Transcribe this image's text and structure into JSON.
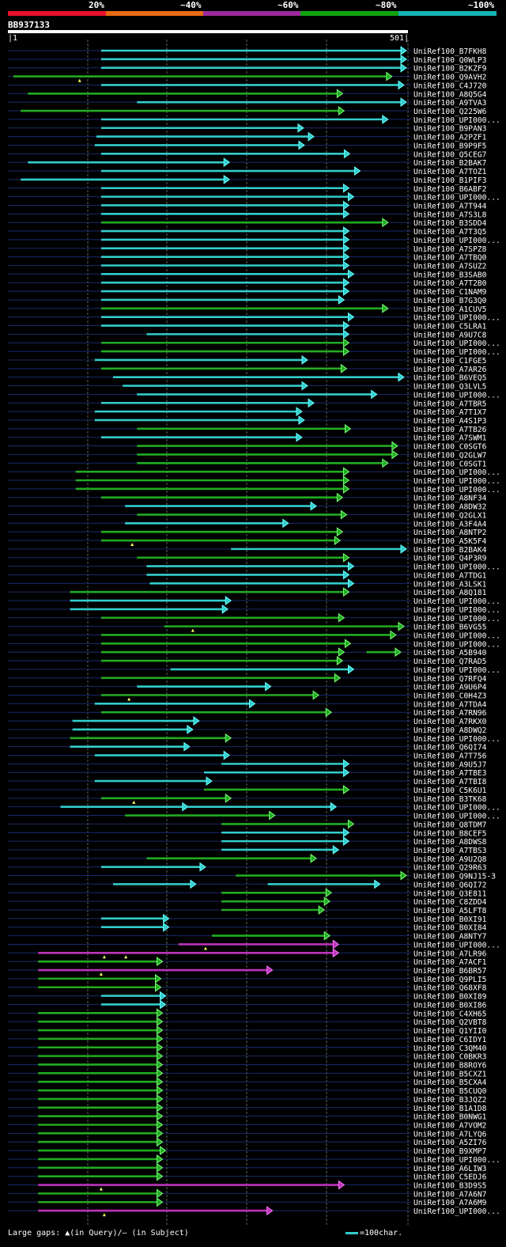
{
  "legend": {
    "labels": [
      "20%",
      "~40%",
      "~60%",
      "~80%",
      "~100%"
    ],
    "colors": [
      "#e8112d",
      "#e86b12",
      "#9b2a9b",
      "#11a311",
      "#13b3b3"
    ]
  },
  "query": {
    "id": "BB937133",
    "start_label": "1",
    "end_label": "501",
    "length": 501
  },
  "footer": {
    "gaps_text": "Large gaps: ▲(in Query)/– (in Subject)",
    "scale_text": "=100char."
  },
  "chart_data": {
    "type": "alignment-overview",
    "query_length": 501,
    "hits": [
      {
        "name": "UniRef100_B7FKH8",
        "start": 116,
        "end": 501,
        "color": "cyan"
      },
      {
        "name": "UniRef100_Q0WLP3",
        "start": 116,
        "end": 501,
        "color": "cyan"
      },
      {
        "name": "UniRef100_B2KZF9",
        "start": 116,
        "end": 501,
        "color": "cyan"
      },
      {
        "name": "UniRef100_Q9AVH2",
        "start": 6,
        "end": 481,
        "color": "green",
        "marks": [
          89
        ]
      },
      {
        "name": "UniRef100_C4J720",
        "start": 116,
        "end": 496,
        "color": "cyan"
      },
      {
        "name": "UniRef100_A8Q5G4",
        "start": 24,
        "end": 419,
        "color": "green"
      },
      {
        "name": "UniRef100_A9TVA3",
        "start": 161,
        "end": 501,
        "color": "cyan"
      },
      {
        "name": "UniRef100_Q225W6",
        "start": 15,
        "end": 421,
        "color": "green"
      },
      {
        "name": "UniRef100_UPI000...",
        "start": 116,
        "end": 476,
        "color": "cyan"
      },
      {
        "name": "UniRef100_B9PAN3",
        "start": 116,
        "end": 370,
        "color": "cyan"
      },
      {
        "name": "UniRef100_A2PZF1",
        "start": 110,
        "end": 383,
        "color": "cyan"
      },
      {
        "name": "UniRef100_B9P9F5",
        "start": 108,
        "end": 371,
        "color": "cyan"
      },
      {
        "name": "UniRef100_Q5CEG7",
        "start": 116,
        "end": 428,
        "color": "cyan"
      },
      {
        "name": "UniRef100_B2BAK7",
        "start": 24,
        "end": 277,
        "color": "cyan"
      },
      {
        "name": "UniRef100_A7TOZ1",
        "start": 116,
        "end": 441,
        "color": "cyan"
      },
      {
        "name": "UniRef100_B1PIF3",
        "start": 15,
        "end": 277,
        "color": "cyan"
      },
      {
        "name": "UniRef100_B6ABF2",
        "start": 116,
        "end": 427,
        "color": "cyan"
      },
      {
        "name": "UniRef100_UPI000...",
        "start": 116,
        "end": 433,
        "color": "cyan"
      },
      {
        "name": "UniRef100_A7T944",
        "start": 116,
        "end": 427,
        "color": "cyan"
      },
      {
        "name": "UniRef100_A7S3L8",
        "start": 116,
        "end": 427,
        "color": "cyan"
      },
      {
        "name": "UniRef100_B3SDD4",
        "start": 116,
        "end": 476,
        "color": "green"
      },
      {
        "name": "UniRef100_A7T3Q5",
        "start": 116,
        "end": 427,
        "color": "cyan"
      },
      {
        "name": "UniRef100_UPI000...",
        "start": 116,
        "end": 427,
        "color": "cyan"
      },
      {
        "name": "UniRef100_A7SPZ8",
        "start": 116,
        "end": 427,
        "color": "cyan"
      },
      {
        "name": "UniRef100_A7TBQ0",
        "start": 116,
        "end": 427,
        "color": "cyan"
      },
      {
        "name": "UniRef100_A7SUZ2",
        "start": 116,
        "end": 427,
        "color": "cyan"
      },
      {
        "name": "UniRef100_B3SAB0",
        "start": 116,
        "end": 433,
        "color": "cyan"
      },
      {
        "name": "UniRef100_A7T2B0",
        "start": 116,
        "end": 427,
        "color": "cyan"
      },
      {
        "name": "UniRef100_C1NAM9",
        "start": 116,
        "end": 427,
        "color": "cyan"
      },
      {
        "name": "UniRef100_B7G3Q0",
        "start": 116,
        "end": 421,
        "color": "cyan"
      },
      {
        "name": "UniRef100_A1CUV5",
        "start": 116,
        "end": 476,
        "color": "green"
      },
      {
        "name": "UniRef100_UPI000...",
        "start": 116,
        "end": 433,
        "color": "cyan"
      },
      {
        "name": "UniRef100_C5LRA1",
        "start": 116,
        "end": 427,
        "color": "cyan"
      },
      {
        "name": "UniRef100_A9U7C8",
        "start": 173,
        "end": 427,
        "color": "cyan"
      },
      {
        "name": "UniRef100_UPI000...",
        "start": 116,
        "end": 427,
        "color": "green"
      },
      {
        "name": "UniRef100_UPI000...",
        "start": 116,
        "end": 427,
        "color": "green"
      },
      {
        "name": "UniRef100_C1FGE5",
        "start": 108,
        "end": 375,
        "color": "cyan"
      },
      {
        "name": "UniRef100_A7AR26",
        "start": 116,
        "end": 424,
        "color": "green"
      },
      {
        "name": "UniRef100_B6VEQ5",
        "start": 131,
        "end": 496,
        "color": "cyan"
      },
      {
        "name": "UniRef100_Q3LVL5",
        "start": 143,
        "end": 375,
        "color": "cyan"
      },
      {
        "name": "UniRef100_UPI000...",
        "start": 161,
        "end": 462,
        "color": "cyan"
      },
      {
        "name": "UniRef100_A7TBR5",
        "start": 116,
        "end": 383,
        "color": "cyan"
      },
      {
        "name": "UniRef100_A7T1X7",
        "start": 108,
        "end": 368,
        "color": "cyan"
      },
      {
        "name": "UniRef100_A4S1P3",
        "start": 108,
        "end": 371,
        "color": "cyan"
      },
      {
        "name": "UniRef100_A7TB26",
        "start": 161,
        "end": 429,
        "color": "green"
      },
      {
        "name": "UniRef100_A7SWM1",
        "start": 116,
        "end": 368,
        "color": "cyan"
      },
      {
        "name": "UniRef100_C0SGT6",
        "start": 161,
        "end": 488,
        "color": "green"
      },
      {
        "name": "UniRef100_Q2GLW7",
        "start": 161,
        "end": 488,
        "color": "green"
      },
      {
        "name": "UniRef100_C0SGT1",
        "start": 161,
        "end": 476,
        "color": "green"
      },
      {
        "name": "UniRef100_UPI000...",
        "start": 84,
        "end": 427,
        "color": "green"
      },
      {
        "name": "UniRef100_UPI000...",
        "start": 84,
        "end": 427,
        "color": "green"
      },
      {
        "name": "UniRef100_UPI000...",
        "start": 84,
        "end": 427,
        "color": "green"
      },
      {
        "name": "UniRef100_A8NF34",
        "start": 116,
        "end": 419,
        "color": "green"
      },
      {
        "name": "UniRef100_A8DW32",
        "start": 146,
        "end": 386,
        "color": "cyan"
      },
      {
        "name": "UniRef100_Q2GLX1",
        "start": 161,
        "end": 424,
        "color": "green"
      },
      {
        "name": "UniRef100_A3F4A4",
        "start": 146,
        "end": 351,
        "color": "cyan"
      },
      {
        "name": "UniRef100_A8NTP2",
        "start": 116,
        "end": 419,
        "color": "green"
      },
      {
        "name": "UniRef100_A5K5F4",
        "start": 116,
        "end": 416,
        "color": "green",
        "marks": [
          155
        ]
      },
      {
        "name": "UniRef100_B2BAK4",
        "start": 279,
        "end": 501,
        "color": "cyan"
      },
      {
        "name": "UniRef100_Q4P3R9",
        "start": 161,
        "end": 427,
        "color": "green"
      },
      {
        "name": "UniRef100_UPI000...",
        "start": 173,
        "end": 433,
        "color": "cyan"
      },
      {
        "name": "UniRef100_A7TDG1",
        "start": 173,
        "end": 427,
        "color": "cyan"
      },
      {
        "name": "UniRef100_A3LSK1",
        "start": 177,
        "end": 433,
        "color": "cyan"
      },
      {
        "name": "UniRef100_A8Q181",
        "start": 77,
        "end": 427,
        "color": "green"
      },
      {
        "name": "UniRef100_UPI000...",
        "start": 77,
        "end": 279,
        "color": "cyan"
      },
      {
        "name": "UniRef100_UPI000...",
        "start": 77,
        "end": 275,
        "color": "cyan"
      },
      {
        "name": "UniRef100_UPI000...",
        "start": 116,
        "end": 421,
        "color": "green"
      },
      {
        "name": "UniRef100_B6VG55",
        "start": 195,
        "end": 496,
        "color": "green",
        "marks": [
          231
        ]
      },
      {
        "name": "UniRef100_UPI000...",
        "start": 116,
        "end": 486,
        "color": "green"
      },
      {
        "name": "UniRef100_UPI000...",
        "start": 116,
        "end": 429,
        "color": "green"
      },
      {
        "name": "UniRef100_A5B940",
        "start": 116,
        "end": 421,
        "color": "green",
        "extra": [
          [
            449,
            492
          ]
        ]
      },
      {
        "name": "UniRef100_Q7RAD5",
        "start": 116,
        "end": 419,
        "color": "green"
      },
      {
        "name": "UniRef100_UPI000...",
        "start": 203,
        "end": 433,
        "color": "cyan"
      },
      {
        "name": "UniRef100_Q7RFQ4",
        "start": 116,
        "end": 416,
        "color": "green"
      },
      {
        "name": "UniRef100_A9U6P4",
        "start": 161,
        "end": 329,
        "color": "cyan"
      },
      {
        "name": "UniRef100_C0H4Z3",
        "start": 116,
        "end": 389,
        "color": "green",
        "marks": [
          151
        ]
      },
      {
        "name": "UniRef100_A7TDA4",
        "start": 108,
        "end": 309,
        "color": "cyan"
      },
      {
        "name": "UniRef100_A7RN96",
        "start": 116,
        "end": 405,
        "color": "green"
      },
      {
        "name": "UniRef100_A7RKX0",
        "start": 80,
        "end": 239,
        "color": "cyan"
      },
      {
        "name": "UniRef100_A8DWQ2",
        "start": 80,
        "end": 231,
        "color": "cyan"
      },
      {
        "name": "UniRef100_UPI000...",
        "start": 77,
        "end": 279,
        "color": "green"
      },
      {
        "name": "UniRef100_Q6QI74",
        "start": 77,
        "end": 227,
        "color": "cyan"
      },
      {
        "name": "UniRef100_A7T756",
        "start": 108,
        "end": 277,
        "color": "cyan"
      },
      {
        "name": "UniRef100_A9U5J7",
        "start": 267,
        "end": 427,
        "color": "cyan"
      },
      {
        "name": "UniRef100_A7TBE3",
        "start": 245,
        "end": 427,
        "color": "cyan"
      },
      {
        "name": "UniRef100_A7TBI8",
        "start": 108,
        "end": 255,
        "color": "cyan"
      },
      {
        "name": "UniRef100_C5K6U1",
        "start": 245,
        "end": 427,
        "color": "green"
      },
      {
        "name": "UniRef100_B3TK68",
        "start": 116,
        "end": 279,
        "color": "green",
        "marks": [
          157
        ]
      },
      {
        "name": "UniRef100_UPI000...",
        "start": 65,
        "end": 225,
        "color": "cyan",
        "extra": [
          [
            225,
            411
          ]
        ]
      },
      {
        "name": "UniRef100_UPI000...",
        "start": 146,
        "end": 334,
        "color": "green"
      },
      {
        "name": "UniRef100_Q8TDM7",
        "start": 267,
        "end": 433,
        "color": "green"
      },
      {
        "name": "UniRef100_B8CEF5",
        "start": 267,
        "end": 427,
        "color": "cyan"
      },
      {
        "name": "UniRef100_A8DWS8",
        "start": 267,
        "end": 427,
        "color": "cyan"
      },
      {
        "name": "UniRef100_A7TBS3",
        "start": 267,
        "end": 414,
        "color": "cyan"
      },
      {
        "name": "UniRef100_A9U2Q8",
        "start": 173,
        "end": 386,
        "color": "green"
      },
      {
        "name": "UniRef100_Q29R63",
        "start": 116,
        "end": 247,
        "color": "cyan"
      },
      {
        "name": "UniRef100_Q9NJ15-3",
        "start": 285,
        "end": 521,
        "color": "green"
      },
      {
        "name": "UniRef100_Q6QI72",
        "start": 131,
        "end": 235,
        "color": "cyan",
        "extra": [
          [
            325,
            466
          ]
        ]
      },
      {
        "name": "UniRef100_Q3E811",
        "start": 267,
        "end": 405,
        "color": "green"
      },
      {
        "name": "UniRef100_C8ZDD4",
        "start": 267,
        "end": 403,
        "color": "green"
      },
      {
        "name": "UniRef100_A5LFT8",
        "start": 267,
        "end": 396,
        "color": "green"
      },
      {
        "name": "UniRef100_B0XI91",
        "start": 116,
        "end": 201,
        "color": "cyan"
      },
      {
        "name": "UniRef100_B0XI84",
        "start": 116,
        "end": 201,
        "color": "cyan"
      },
      {
        "name": "UniRef100_A8NTY7",
        "start": 255,
        "end": 403,
        "color": "green"
      },
      {
        "name": "UniRef100_UPI000...",
        "start": 213,
        "end": 414,
        "color": "magenta",
        "marks": [
          247
        ]
      },
      {
        "name": "UniRef100_A7LR96",
        "start": 37,
        "end": 414,
        "color": "magenta",
        "marks": [
          120,
          147
        ]
      },
      {
        "name": "UniRef100_A7ACF1",
        "start": 37,
        "end": 193,
        "color": "green"
      },
      {
        "name": "UniRef100_B6BR57",
        "start": 37,
        "end": 331,
        "color": "magenta",
        "marks": [
          116
        ]
      },
      {
        "name": "UniRef100_Q9PLI5",
        "start": 37,
        "end": 191,
        "color": "green"
      },
      {
        "name": "UniRef100_Q68XF8",
        "start": 37,
        "end": 191,
        "color": "green"
      },
      {
        "name": "UniRef100_B0XI89",
        "start": 116,
        "end": 197,
        "color": "cyan"
      },
      {
        "name": "UniRef100_B0XI86",
        "start": 116,
        "end": 197,
        "color": "cyan"
      },
      {
        "name": "UniRef100_C4XH65",
        "start": 37,
        "end": 193,
        "color": "green"
      },
      {
        "name": "UniRef100_Q2VBT8",
        "start": 37,
        "end": 193,
        "color": "green"
      },
      {
        "name": "UniRef100_Q1YII0",
        "start": 37,
        "end": 193,
        "color": "green"
      },
      {
        "name": "UniRef100_C6IDY1",
        "start": 37,
        "end": 193,
        "color": "green"
      },
      {
        "name": "UniRef100_C3QM40",
        "start": 37,
        "end": 193,
        "color": "green"
      },
      {
        "name": "UniRef100_C0BKR3",
        "start": 37,
        "end": 193,
        "color": "green"
      },
      {
        "name": "UniRef100_B8ROY6",
        "start": 37,
        "end": 193,
        "color": "green"
      },
      {
        "name": "UniRef100_B5CXZ1",
        "start": 37,
        "end": 193,
        "color": "green"
      },
      {
        "name": "UniRef100_B5CXA4",
        "start": 37,
        "end": 193,
        "color": "green"
      },
      {
        "name": "UniRef100_B5CUQ0",
        "start": 37,
        "end": 193,
        "color": "green"
      },
      {
        "name": "UniRef100_B3JQZ2",
        "start": 37,
        "end": 193,
        "color": "green"
      },
      {
        "name": "UniRef100_B1A1D8",
        "start": 37,
        "end": 193,
        "color": "green"
      },
      {
        "name": "UniRef100_B0NWG1",
        "start": 37,
        "end": 193,
        "color": "green"
      },
      {
        "name": "UniRef100_A7VOM2",
        "start": 37,
        "end": 193,
        "color": "green"
      },
      {
        "name": "UniRef100_A7LYQ6",
        "start": 37,
        "end": 193,
        "color": "green"
      },
      {
        "name": "UniRef100_A5ZI76",
        "start": 37,
        "end": 193,
        "color": "green"
      },
      {
        "name": "UniRef100_B9XMP7",
        "start": 37,
        "end": 197,
        "color": "green"
      },
      {
        "name": "UniRef100_UPI000...",
        "start": 37,
        "end": 193,
        "color": "green"
      },
      {
        "name": "UniRef100_A6LIW3",
        "start": 37,
        "end": 193,
        "color": "green"
      },
      {
        "name": "UniRef100_C5EDJ6",
        "start": 37,
        "end": 193,
        "color": "green"
      },
      {
        "name": "UniRef100_B3D9S5",
        "start": 37,
        "end": 421,
        "color": "magenta",
        "marks": [
          116
        ]
      },
      {
        "name": "UniRef100_A7A6N7",
        "start": 37,
        "end": 193,
        "color": "green"
      },
      {
        "name": "UniRef100_A7A6M9",
        "start": 37,
        "end": 193,
        "color": "green"
      },
      {
        "name": "UniRef100_UPI000...",
        "start": 37,
        "end": 331,
        "color": "magenta",
        "marks": [
          120
        ]
      }
    ]
  }
}
